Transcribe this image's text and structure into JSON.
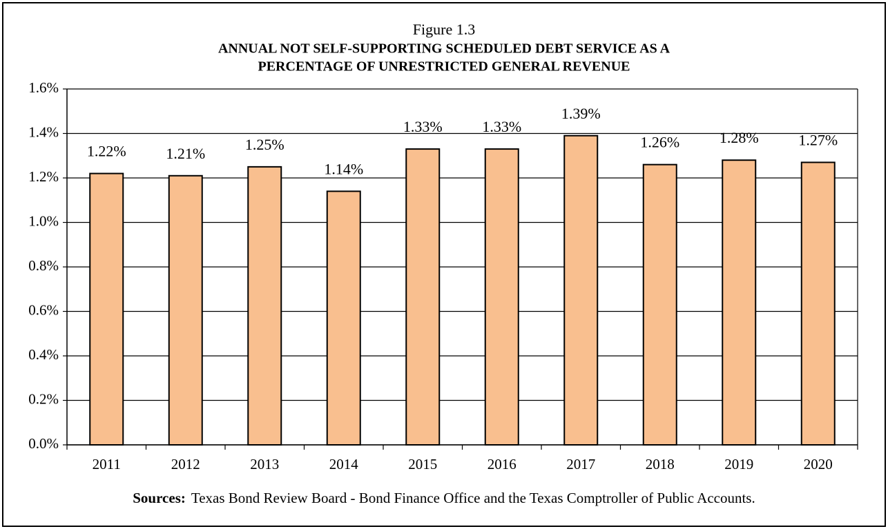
{
  "chart_data": {
    "type": "bar",
    "figure_label": "Figure 1.3",
    "title": [
      "ANNUAL NOT SELF-SUPPORTING SCHEDULED DEBT SERVICE AS A",
      "PERCENTAGE OF UNRESTRICTED GENERAL REVENUE"
    ],
    "categories": [
      "2011",
      "2012",
      "2013",
      "2014",
      "2015",
      "2016",
      "2017",
      "2018",
      "2019",
      "2020"
    ],
    "values": [
      1.22,
      1.21,
      1.25,
      1.14,
      1.33,
      1.33,
      1.39,
      1.26,
      1.28,
      1.27
    ],
    "value_labels": [
      "1.22%",
      "1.21%",
      "1.25%",
      "1.14%",
      "1.33%",
      "1.33%",
      "1.39%",
      "1.26%",
      "1.28%",
      "1.27%"
    ],
    "color": "#f9bf8f",
    "ylim": [
      0,
      1.6
    ],
    "yticks": [
      {
        "value": 0,
        "label": "0.0%"
      },
      {
        "value": 0.2,
        "label": "0.2%"
      },
      {
        "value": 0.4,
        "label": "0.4%"
      },
      {
        "value": 0.6,
        "label": "0.6%"
      },
      {
        "value": 0.8,
        "label": "0.8%"
      },
      {
        "value": 1.0,
        "label": "1.0%"
      },
      {
        "value": 1.2,
        "label": "1.2%"
      },
      {
        "value": 1.4,
        "label": "1.4%"
      },
      {
        "value": 1.6,
        "label": "1.6%"
      }
    ],
    "grid": true,
    "source_label": "Sources:",
    "source": "Texas Bond Review Board - Bond Finance Office and the Texas Comptroller of Public Accounts."
  }
}
